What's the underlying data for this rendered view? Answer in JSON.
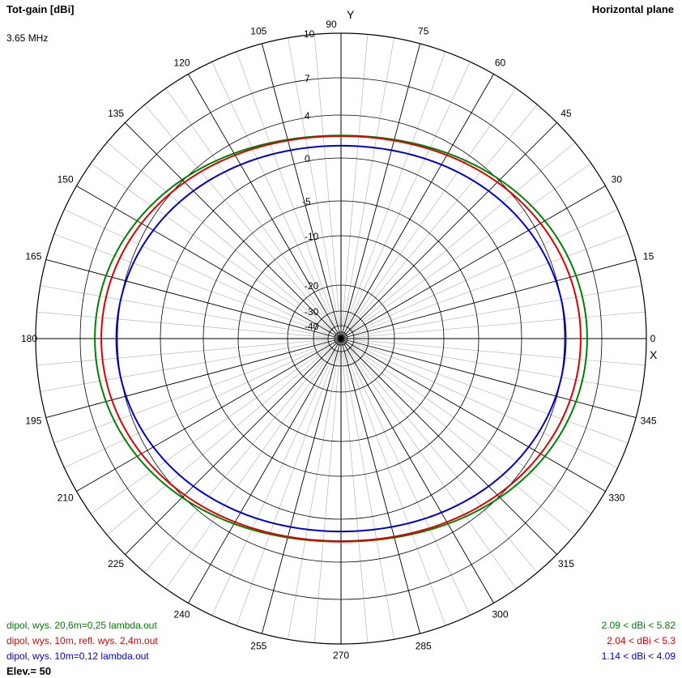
{
  "header": {
    "title": "Tot-gain [dBi]",
    "frequency": "3.65 MHz",
    "plane": "Horizontal plane",
    "y_axis": "Y",
    "x_axis": "X",
    "elevation": "Elev.= 50"
  },
  "chart_data": {
    "type": "polar",
    "angle_labels": [
      "0",
      "15",
      "30",
      "45",
      "60",
      "75",
      "90",
      "105",
      "120",
      "135",
      "150",
      "165",
      "180",
      "195",
      "210",
      "225",
      "240",
      "255",
      "270",
      "285",
      "300",
      "315",
      "330",
      "345"
    ],
    "radial_ticks": [
      "10",
      "7",
      "4",
      "0",
      "-5",
      "-10",
      "-20",
      "-30",
      "-40"
    ],
    "radial_tick_values": [
      10,
      7,
      4,
      0,
      -5,
      -10,
      -20,
      -30,
      -40
    ],
    "series": [
      {
        "name": "dipol, wys. 20,6m=0,25 lambda.out",
        "range_label": "2.09 < dBi < 5.82",
        "min_dbi": 2.09,
        "max_dbi": 5.82,
        "color": "#008000"
      },
      {
        "name": "dipol, wys. 10m, refl. wys. 2,4m.out",
        "range_label": "2.04 < dBi < 5.3",
        "min_dbi": 2.04,
        "max_dbi": 5.3,
        "color": "#dd0000"
      },
      {
        "name": "dipol, wys. 10m=0,12 lambda.out",
        "range_label": "1.14 < dBi < 4.09",
        "min_dbi": 1.14,
        "max_dbi": 4.09,
        "color": "#0000cc"
      }
    ]
  }
}
